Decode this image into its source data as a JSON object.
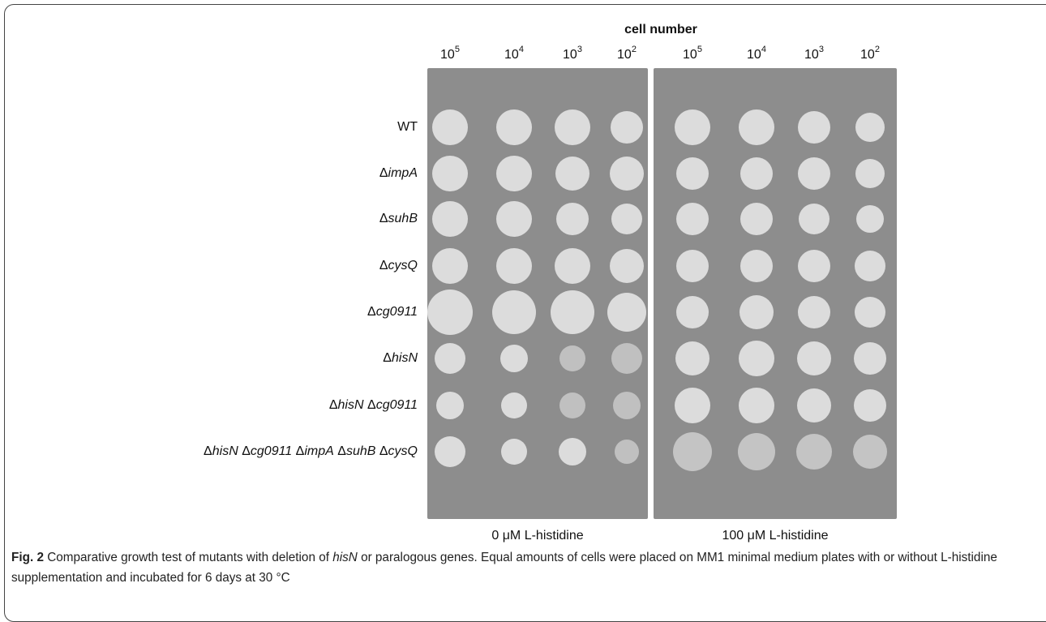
{
  "figure": {
    "header": "cell number",
    "dilutions": [
      {
        "base": "10",
        "exponent": "5"
      },
      {
        "base": "10",
        "exponent": "4"
      },
      {
        "base": "10",
        "exponent": "3"
      },
      {
        "base": "10",
        "exponent": "2"
      }
    ],
    "strains": [
      [
        {
          "text": "WT",
          "italic": false
        }
      ],
      [
        {
          "text": "Δ",
          "italic": false
        },
        {
          "text": "impA",
          "italic": true
        }
      ],
      [
        {
          "text": "Δ",
          "italic": false
        },
        {
          "text": "suhB",
          "italic": true
        }
      ],
      [
        {
          "text": "Δ",
          "italic": false
        },
        {
          "text": "cysQ",
          "italic": true
        }
      ],
      [
        {
          "text": "Δ",
          "italic": false
        },
        {
          "text": "cg0911",
          "italic": true
        }
      ],
      [
        {
          "text": "Δ",
          "italic": false
        },
        {
          "text": "hisN",
          "italic": true
        }
      ],
      [
        {
          "text": "Δ",
          "italic": false
        },
        {
          "text": "hisN",
          "italic": true
        },
        {
          "text": " Δ",
          "italic": false
        },
        {
          "text": "cg0911",
          "italic": true
        }
      ],
      [
        {
          "text": "Δ",
          "italic": false
        },
        {
          "text": "hisN",
          "italic": true
        },
        {
          "text": " Δ",
          "italic": false
        },
        {
          "text": "cg0911",
          "italic": true
        },
        {
          "text": " Δ",
          "italic": false
        },
        {
          "text": "impA",
          "italic": true
        },
        {
          "text": " Δ",
          "italic": false
        },
        {
          "text": "suhB",
          "italic": true
        },
        {
          "text": " Δ",
          "italic": false
        },
        {
          "text": "cysQ",
          "italic": true
        }
      ]
    ],
    "plates": [
      "0 μM L-histidine",
      "100 μM L-histidine"
    ],
    "caption": [
      {
        "text": "Fig. 2",
        "bold": true,
        "italic": false
      },
      {
        "text": " Comparative growth test of mutants with deletion of ",
        "bold": false,
        "italic": false
      },
      {
        "text": "hisN",
        "bold": false,
        "italic": true
      },
      {
        "text": " or paralogous genes. Equal amounts of cells were placed on MM1 minimal medium plates with or without L-histidine supplementation and incubated for 6 days at 30 °C",
        "bold": false,
        "italic": false
      }
    ]
  }
}
